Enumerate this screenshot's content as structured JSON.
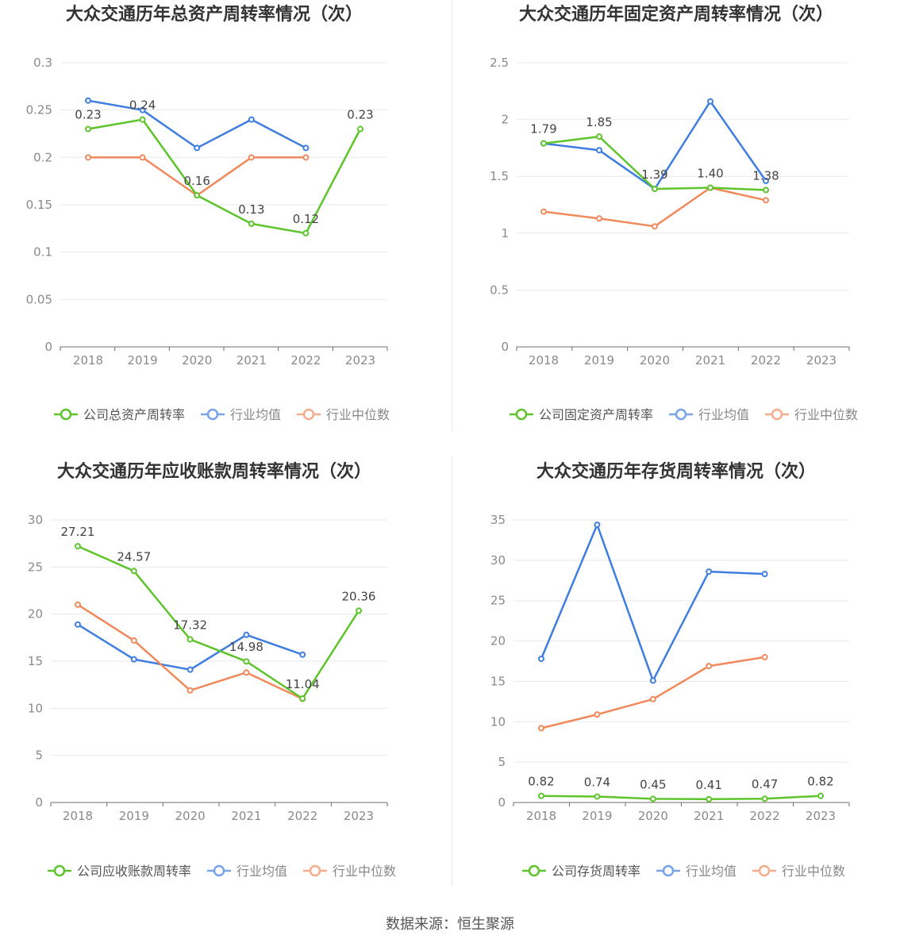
{
  "source_text": "数据来源：恒生聚源",
  "colors": {
    "company": "#5ec42c",
    "avg": "#3f7de0",
    "median": "#f08a5d",
    "grid": "#e8e8ef",
    "axis": "#6e6e6e"
  },
  "chart_data": [
    {
      "type": "line",
      "title": "大众交通历年总资产周转率情况（次）",
      "categories": [
        "2018",
        "2019",
        "2020",
        "2021",
        "2022",
        "2023"
      ],
      "ylim": [
        0,
        0.3
      ],
      "yticks": [
        "0",
        "0.05",
        "0.1",
        "0.15",
        "0.2",
        "0.25",
        "0.3"
      ],
      "legend": [
        "公司总资产周转率",
        "行业均值",
        "行业中位数"
      ],
      "series": [
        {
          "name": "公司总资产周转率",
          "values": [
            0.23,
            0.24,
            0.16,
            0.13,
            0.12,
            0.23
          ],
          "labels": [
            "0.23",
            "0.24",
            "0.16",
            "0.13",
            "0.12",
            "0.23"
          ]
        },
        {
          "name": "行业均值",
          "values": [
            0.26,
            0.25,
            0.21,
            0.24,
            0.21,
            null
          ]
        },
        {
          "name": "行业中位数",
          "values": [
            0.2,
            0.2,
            0.16,
            0.2,
            0.2,
            null
          ]
        }
      ]
    },
    {
      "type": "line",
      "title": "大众交通历年固定资产周转率情况（次）",
      "categories": [
        "2018",
        "2019",
        "2020",
        "2021",
        "2022",
        "2023"
      ],
      "ylim": [
        0,
        2.5
      ],
      "yticks": [
        "0",
        "0.5",
        "1",
        "1.5",
        "2",
        "2.5"
      ],
      "legend": [
        "公司固定资产周转率",
        "行业均值",
        "行业中位数"
      ],
      "series": [
        {
          "name": "公司固定资产周转率",
          "values": [
            1.79,
            1.85,
            1.39,
            1.4,
            1.38,
            null
          ],
          "labels": [
            "1.79",
            "1.85",
            "1.39",
            "1.40",
            "1.38",
            null
          ]
        },
        {
          "name": "行业均值",
          "values": [
            1.79,
            1.73,
            1.39,
            2.16,
            1.46,
            null
          ]
        },
        {
          "name": "行业中位数",
          "values": [
            1.19,
            1.13,
            1.06,
            1.4,
            1.29,
            null
          ]
        }
      ]
    },
    {
      "type": "line",
      "title": "大众交通历年应收账款周转率情况（次）",
      "categories": [
        "2018",
        "2019",
        "2020",
        "2021",
        "2022",
        "2023"
      ],
      "ylim": [
        0,
        30
      ],
      "yticks": [
        "0",
        "5",
        "10",
        "15",
        "20",
        "25",
        "30"
      ],
      "legend": [
        "公司应收账款周转率",
        "行业均值",
        "行业中位数"
      ],
      "series": [
        {
          "name": "公司应收账款周转率",
          "values": [
            27.21,
            24.57,
            17.32,
            14.98,
            11.04,
            20.36
          ],
          "labels": [
            "27.21",
            "24.57",
            "17.32",
            "14.98",
            "11.04",
            "20.36"
          ]
        },
        {
          "name": "行业均值",
          "values": [
            18.9,
            15.2,
            14.1,
            17.8,
            15.7,
            null
          ]
        },
        {
          "name": "行业中位数",
          "values": [
            21.0,
            17.2,
            11.9,
            13.8,
            11.0,
            null
          ]
        }
      ]
    },
    {
      "type": "line",
      "title": "大众交通历年存货周转率情况（次）",
      "categories": [
        "2018",
        "2019",
        "2020",
        "2021",
        "2022",
        "2023"
      ],
      "ylim": [
        0,
        35
      ],
      "yticks": [
        "0",
        "5",
        "10",
        "15",
        "20",
        "25",
        "30",
        "35"
      ],
      "legend": [
        "公司存货周转率",
        "行业均值",
        "行业中位数"
      ],
      "series": [
        {
          "name": "公司存货周转率",
          "values": [
            0.82,
            0.74,
            0.45,
            0.41,
            0.47,
            0.82
          ],
          "labels": [
            "0.82",
            "0.74",
            "0.45",
            "0.41",
            "0.47",
            "0.82"
          ]
        },
        {
          "name": "行业均值",
          "values": [
            17.8,
            34.4,
            15.1,
            28.6,
            28.3,
            null
          ]
        },
        {
          "name": "行业中位数",
          "values": [
            9.2,
            10.9,
            12.8,
            16.9,
            18.0,
            null
          ]
        }
      ]
    }
  ]
}
